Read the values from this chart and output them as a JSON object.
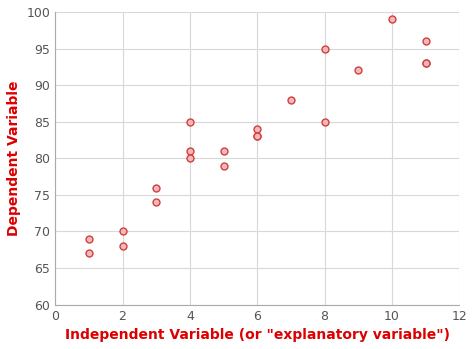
{
  "x": [
    1,
    1,
    2,
    2,
    3,
    3,
    4,
    4,
    4,
    5,
    5,
    6,
    6,
    6,
    7,
    8,
    8,
    9,
    10,
    11,
    11,
    11
  ],
  "y": [
    69,
    67,
    70,
    68,
    76,
    74,
    85,
    81,
    80,
    81,
    79,
    84,
    83,
    83,
    88,
    95,
    85,
    92,
    99,
    96,
    93,
    93
  ],
  "marker_facecolor": "#f5b8b8",
  "marker_edgecolor": "#d04040",
  "marker_size": 5,
  "marker_linewidth": 1.0,
  "xlabel": "Independent Variable (or \"explanatory variable\")",
  "ylabel": "Dependent Variable",
  "xlabel_color": "#dd0000",
  "ylabel_color": "#dd0000",
  "xlabel_fontsize": 10,
  "ylabel_fontsize": 10,
  "tick_label_color": "#555555",
  "xlim": [
    0,
    12
  ],
  "ylim": [
    60,
    100
  ],
  "xticks": [
    0,
    2,
    4,
    6,
    8,
    10,
    12
  ],
  "yticks": [
    60,
    65,
    70,
    75,
    80,
    85,
    90,
    95,
    100
  ],
  "grid_color": "#d8d8d8",
  "background_color": "#ffffff",
  "tick_label_fontsize": 9,
  "spine_color": "#aaaaaa"
}
